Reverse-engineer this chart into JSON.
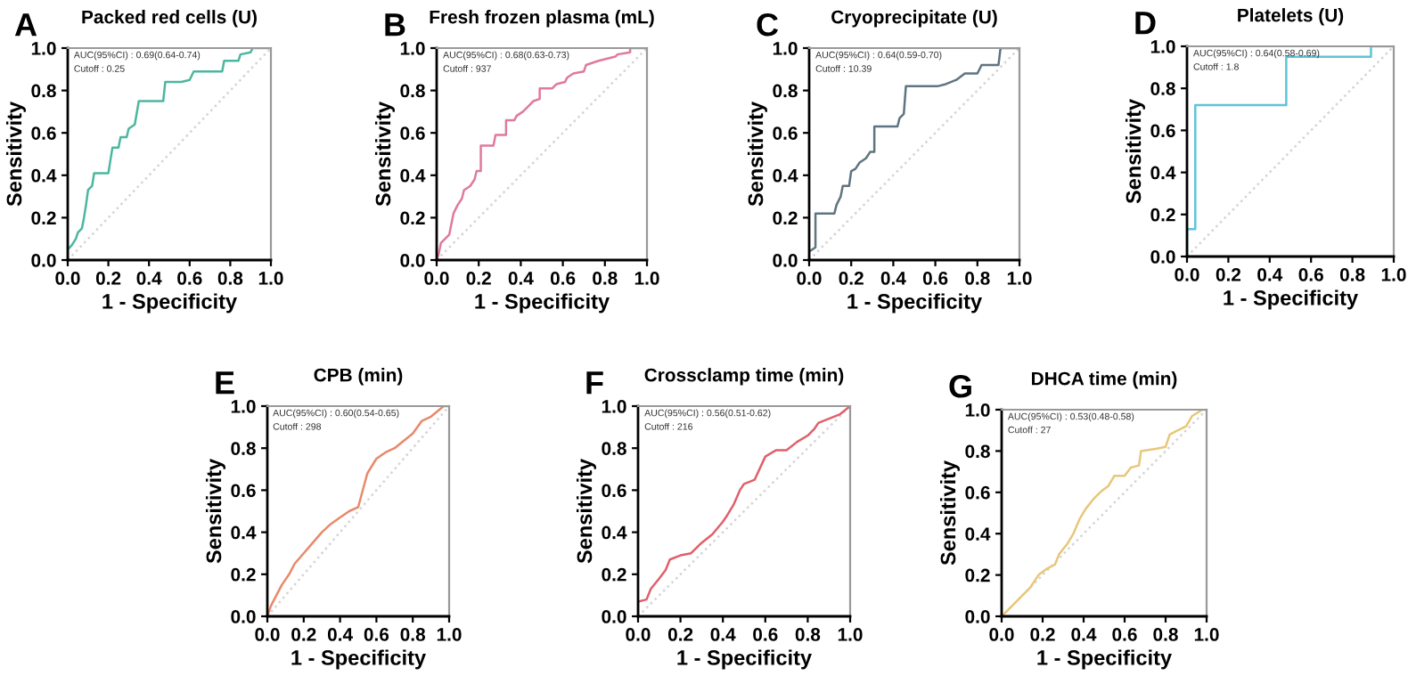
{
  "chart_data": [
    {
      "type": "line",
      "title": "Packed red cells (U)",
      "xlabel": "1 - Specificity",
      "ylabel": "Sensitivity",
      "annotations": [
        "A",
        "AUC(95%CI) : 0.69(0.64-0.74)",
        "Cutoff : 0.25"
      ],
      "xlim": [
        0,
        1
      ],
      "ylim": [
        0,
        1
      ],
      "xticks": [
        {
          "value": 0,
          "label": "0.0"
        },
        {
          "value": 0.2,
          "label": "0.2"
        },
        {
          "value": 0.4,
          "label": "0.4"
        },
        {
          "value": 0.6,
          "label": "0.6"
        },
        {
          "value": 0.8,
          "label": "0.8"
        },
        {
          "value": 1,
          "label": "1.0"
        }
      ],
      "yticks": [
        {
          "value": 0,
          "label": "0.0"
        },
        {
          "value": 0.2,
          "label": "0.2"
        },
        {
          "value": 0.4,
          "label": "0.4"
        },
        {
          "value": 0.6,
          "label": "0.6"
        },
        {
          "value": 0.8,
          "label": "0.8"
        },
        {
          "value": 1,
          "label": "1.0"
        }
      ],
      "series": [
        {
          "line_style": "dotted",
          "color": "#d4d4d4",
          "x": [
            0,
            1
          ],
          "values": [
            0,
            1
          ]
        },
        {
          "line_style": "solid",
          "color": "#4db6a0",
          "x": [
            0,
            0,
            0.02,
            0.04,
            0.05,
            0.07,
            0.08,
            0.09,
            0.1,
            0.12,
            0.13,
            0.2,
            0.21,
            0.22,
            0.25,
            0.26,
            0.29,
            0.3,
            0.33,
            0.35,
            0.47,
            0.48,
            0.56,
            0.6,
            0.62,
            0.76,
            0.77,
            0.84,
            0.85,
            0.9,
            0.91,
            1
          ],
          "values": [
            0,
            0.05,
            0.07,
            0.1,
            0.13,
            0.15,
            0.2,
            0.26,
            0.33,
            0.35,
            0.41,
            0.41,
            0.47,
            0.53,
            0.53,
            0.58,
            0.58,
            0.62,
            0.64,
            0.75,
            0.75,
            0.84,
            0.84,
            0.85,
            0.89,
            0.89,
            0.94,
            0.94,
            0.97,
            0.98,
            1,
            1
          ]
        }
      ]
    },
    {
      "type": "line",
      "title": "Fresh frozen plasma (mL)",
      "xlabel": "1 - Specificity",
      "ylabel": "Sensitivity",
      "annotations": [
        "B",
        "AUC(95%CI) : 0.68(0.63-0.73)",
        "Cutoff : 937"
      ],
      "xlim": [
        0,
        1
      ],
      "ylim": [
        0,
        1
      ],
      "xticks": [
        {
          "value": 0,
          "label": "0.0"
        },
        {
          "value": 0.2,
          "label": "0.2"
        },
        {
          "value": 0.4,
          "label": "0.4"
        },
        {
          "value": 0.6,
          "label": "0.6"
        },
        {
          "value": 0.8,
          "label": "0.8"
        },
        {
          "value": 1,
          "label": "1.0"
        }
      ],
      "yticks": [
        {
          "value": 0,
          "label": "0.0"
        },
        {
          "value": 0.2,
          "label": "0.2"
        },
        {
          "value": 0.4,
          "label": "0.4"
        },
        {
          "value": 0.6,
          "label": "0.6"
        },
        {
          "value": 0.8,
          "label": "0.8"
        },
        {
          "value": 1,
          "label": "1.0"
        }
      ],
      "series": [
        {
          "line_style": "dotted",
          "color": "#d4d4d4",
          "x": [
            0,
            1
          ],
          "values": [
            0,
            1
          ]
        },
        {
          "line_style": "solid",
          "color": "#e07a9a",
          "x": [
            0,
            0.01,
            0.02,
            0.04,
            0.06,
            0.07,
            0.08,
            0.1,
            0.12,
            0.13,
            0.16,
            0.18,
            0.19,
            0.21,
            0.21,
            0.27,
            0.28,
            0.33,
            0.33,
            0.37,
            0.38,
            0.41,
            0.44,
            0.46,
            0.49,
            0.49,
            0.55,
            0.57,
            0.61,
            0.62,
            0.65,
            0.7,
            0.71,
            0.77,
            0.85,
            0.86,
            0.92,
            0.92,
            1
          ],
          "values": [
            0,
            0.03,
            0.08,
            0.1,
            0.12,
            0.17,
            0.22,
            0.26,
            0.29,
            0.33,
            0.35,
            0.38,
            0.42,
            0.42,
            0.54,
            0.54,
            0.59,
            0.59,
            0.66,
            0.66,
            0.68,
            0.7,
            0.73,
            0.75,
            0.76,
            0.81,
            0.81,
            0.83,
            0.84,
            0.86,
            0.88,
            0.89,
            0.92,
            0.94,
            0.96,
            0.97,
            0.98,
            1,
            1
          ]
        }
      ]
    },
    {
      "type": "line",
      "title": "Cryoprecipitate (U)",
      "xlabel": "1 - Specificity",
      "ylabel": "Sensitivity",
      "annotations": [
        "C",
        "AUC(95%CI) : 0.64(0.59-0.70)",
        "Cutoff : 10.39"
      ],
      "xlim": [
        0,
        1
      ],
      "ylim": [
        0,
        1
      ],
      "xticks": [
        {
          "value": 0,
          "label": "0.0"
        },
        {
          "value": 0.2,
          "label": "0.2"
        },
        {
          "value": 0.4,
          "label": "0.4"
        },
        {
          "value": 0.6,
          "label": "0.6"
        },
        {
          "value": 0.8,
          "label": "0.8"
        },
        {
          "value": 1,
          "label": "1.0"
        }
      ],
      "yticks": [
        {
          "value": 0,
          "label": "0.0"
        },
        {
          "value": 0.2,
          "label": "0.2"
        },
        {
          "value": 0.4,
          "label": "0.4"
        },
        {
          "value": 0.6,
          "label": "0.6"
        },
        {
          "value": 0.8,
          "label": "0.8"
        },
        {
          "value": 1,
          "label": "1.0"
        }
      ],
      "series": [
        {
          "line_style": "dotted",
          "color": "#d4d4d4",
          "x": [
            0,
            1
          ],
          "values": [
            0,
            1
          ]
        },
        {
          "line_style": "solid",
          "color": "#5f7480",
          "x": [
            0,
            0,
            0.03,
            0.03,
            0.12,
            0.13,
            0.15,
            0.16,
            0.19,
            0.2,
            0.22,
            0.24,
            0.27,
            0.29,
            0.31,
            0.31,
            0.42,
            0.43,
            0.45,
            0.46,
            0.61,
            0.65,
            0.7,
            0.74,
            0.8,
            0.82,
            0.9,
            0.91,
            1
          ],
          "values": [
            0,
            0.04,
            0.06,
            0.22,
            0.22,
            0.26,
            0.3,
            0.35,
            0.35,
            0.42,
            0.43,
            0.46,
            0.48,
            0.51,
            0.51,
            0.63,
            0.63,
            0.67,
            0.69,
            0.82,
            0.82,
            0.83,
            0.85,
            0.88,
            0.88,
            0.92,
            0.92,
            1,
            1
          ]
        }
      ]
    },
    {
      "type": "line",
      "title": "Platelets (U)",
      "xlabel": "1 - Specificity",
      "ylabel": "Sensitivity",
      "annotations": [
        "D",
        "AUC(95%CI) : 0.64(0.58-0.69)",
        "Cutoff : 1.8"
      ],
      "xlim": [
        0,
        1
      ],
      "ylim": [
        0,
        1
      ],
      "xticks": [
        {
          "value": 0,
          "label": "0.0"
        },
        {
          "value": 0.2,
          "label": "0.2"
        },
        {
          "value": 0.4,
          "label": "0.4"
        },
        {
          "value": 0.6,
          "label": "0.6"
        },
        {
          "value": 0.8,
          "label": "0.8"
        },
        {
          "value": 1,
          "label": "1.0"
        }
      ],
      "yticks": [
        {
          "value": 0,
          "label": "0.0"
        },
        {
          "value": 0.2,
          "label": "0.2"
        },
        {
          "value": 0.4,
          "label": "0.4"
        },
        {
          "value": 0.6,
          "label": "0.6"
        },
        {
          "value": 0.8,
          "label": "0.8"
        },
        {
          "value": 1,
          "label": "1.0"
        }
      ],
      "series": [
        {
          "line_style": "dotted",
          "color": "#d4d4d4",
          "x": [
            0,
            1
          ],
          "values": [
            0,
            1
          ]
        },
        {
          "line_style": "solid",
          "color": "#5ec4d8",
          "x": [
            0,
            0,
            0.04,
            0.04,
            0.48,
            0.48,
            0.89,
            0.89,
            1
          ],
          "values": [
            0,
            0.13,
            0.13,
            0.72,
            0.72,
            0.95,
            0.95,
            1,
            1
          ]
        }
      ]
    },
    {
      "type": "line",
      "title": "CPB (min)",
      "xlabel": "1 - Specificity",
      "ylabel": "Sensitivity",
      "annotations": [
        "E",
        "AUC(95%CI) : 0.60(0.54-0.65)",
        "Cutoff : 298"
      ],
      "xlim": [
        0,
        1
      ],
      "ylim": [
        0,
        1
      ],
      "xticks": [
        {
          "value": 0,
          "label": "0.0"
        },
        {
          "value": 0.2,
          "label": "0.2"
        },
        {
          "value": 0.4,
          "label": "0.4"
        },
        {
          "value": 0.6,
          "label": "0.6"
        },
        {
          "value": 0.8,
          "label": "0.8"
        },
        {
          "value": 1,
          "label": "1.0"
        }
      ],
      "yticks": [
        {
          "value": 0,
          "label": "0.0"
        },
        {
          "value": 0.2,
          "label": "0.2"
        },
        {
          "value": 0.4,
          "label": "0.4"
        },
        {
          "value": 0.6,
          "label": "0.6"
        },
        {
          "value": 0.8,
          "label": "0.8"
        },
        {
          "value": 1,
          "label": "1.0"
        }
      ],
      "series": [
        {
          "line_style": "dotted",
          "color": "#d4d4d4",
          "x": [
            0,
            1
          ],
          "values": [
            0,
            1
          ]
        },
        {
          "line_style": "solid",
          "color": "#e8896a",
          "x": [
            0,
            0.02,
            0.05,
            0.08,
            0.12,
            0.15,
            0.2,
            0.25,
            0.3,
            0.35,
            0.4,
            0.45,
            0.5,
            0.55,
            0.6,
            0.65,
            0.7,
            0.8,
            0.85,
            0.9,
            0.97,
            1
          ],
          "values": [
            0,
            0.05,
            0.1,
            0.15,
            0.2,
            0.25,
            0.3,
            0.35,
            0.4,
            0.44,
            0.47,
            0.5,
            0.52,
            0.68,
            0.75,
            0.78,
            0.8,
            0.87,
            0.93,
            0.95,
            1,
            1
          ]
        }
      ]
    },
    {
      "type": "line",
      "title": "Crossclamp time (min)",
      "xlabel": "1 - Specificity",
      "ylabel": "Sensitivity",
      "annotations": [
        "F",
        "AUC(95%CI) : 0.56(0.51-0.62)",
        "Cutoff : 216"
      ],
      "xlim": [
        0,
        1
      ],
      "ylim": [
        0,
        1
      ],
      "xticks": [
        {
          "value": 0,
          "label": "0.0"
        },
        {
          "value": 0.2,
          "label": "0.2"
        },
        {
          "value": 0.4,
          "label": "0.4"
        },
        {
          "value": 0.6,
          "label": "0.6"
        },
        {
          "value": 0.8,
          "label": "0.8"
        },
        {
          "value": 1,
          "label": "1.0"
        }
      ],
      "yticks": [
        {
          "value": 0,
          "label": "0.0"
        },
        {
          "value": 0.2,
          "label": "0.2"
        },
        {
          "value": 0.4,
          "label": "0.4"
        },
        {
          "value": 0.6,
          "label": "0.6"
        },
        {
          "value": 0.8,
          "label": "0.8"
        },
        {
          "value": 1,
          "label": "1.0"
        }
      ],
      "series": [
        {
          "line_style": "dotted",
          "color": "#d4d4d4",
          "x": [
            0,
            1
          ],
          "values": [
            0,
            1
          ]
        },
        {
          "line_style": "solid",
          "color": "#e0606a",
          "x": [
            0,
            0,
            0.04,
            0.06,
            0.1,
            0.13,
            0.15,
            0.2,
            0.25,
            0.3,
            0.35,
            0.4,
            0.42,
            0.45,
            0.48,
            0.5,
            0.55,
            0.6,
            0.65,
            0.7,
            0.75,
            0.8,
            0.83,
            0.85,
            0.9,
            0.95,
            1
          ],
          "values": [
            0,
            0.07,
            0.08,
            0.13,
            0.18,
            0.22,
            0.27,
            0.29,
            0.3,
            0.35,
            0.39,
            0.45,
            0.48,
            0.53,
            0.6,
            0.63,
            0.65,
            0.76,
            0.79,
            0.79,
            0.83,
            0.86,
            0.89,
            0.92,
            0.94,
            0.96,
            1
          ]
        }
      ]
    },
    {
      "type": "line",
      "title": "DHCA time (min)",
      "xlabel": "1 - Specificity",
      "ylabel": "Sensitivity",
      "annotations": [
        "G",
        "AUC(95%CI) : 0.53(0.48-0.58)",
        "Cutoff : 27"
      ],
      "xlim": [
        0,
        1
      ],
      "ylim": [
        0,
        1
      ],
      "xticks": [
        {
          "value": 0,
          "label": "0.0"
        },
        {
          "value": 0.2,
          "label": "0.2"
        },
        {
          "value": 0.4,
          "label": "0.4"
        },
        {
          "value": 0.6,
          "label": "0.6"
        },
        {
          "value": 0.8,
          "label": "0.8"
        },
        {
          "value": 1,
          "label": "1.0"
        }
      ],
      "yticks": [
        {
          "value": 0,
          "label": "0.0"
        },
        {
          "value": 0.2,
          "label": "0.2"
        },
        {
          "value": 0.4,
          "label": "0.4"
        },
        {
          "value": 0.6,
          "label": "0.6"
        },
        {
          "value": 0.8,
          "label": "0.8"
        },
        {
          "value": 1,
          "label": "1.0"
        }
      ],
      "series": [
        {
          "line_style": "dotted",
          "color": "#d4d4d4",
          "x": [
            0,
            1
          ],
          "values": [
            0,
            1
          ]
        },
        {
          "line_style": "solid",
          "color": "#e8c77a",
          "x": [
            0,
            0.03,
            0.07,
            0.1,
            0.14,
            0.18,
            0.22,
            0.26,
            0.28,
            0.32,
            0.35,
            0.38,
            0.41,
            0.45,
            0.48,
            0.52,
            0.55,
            0.6,
            0.63,
            0.67,
            0.68,
            0.75,
            0.8,
            0.82,
            0.86,
            0.9,
            0.93,
            0.98,
            1
          ],
          "values": [
            0,
            0.03,
            0.07,
            0.1,
            0.14,
            0.2,
            0.23,
            0.25,
            0.3,
            0.35,
            0.4,
            0.47,
            0.52,
            0.57,
            0.6,
            0.63,
            0.68,
            0.68,
            0.72,
            0.73,
            0.8,
            0.81,
            0.82,
            0.88,
            0.9,
            0.92,
            0.97,
            1,
            1
          ]
        }
      ]
    }
  ]
}
